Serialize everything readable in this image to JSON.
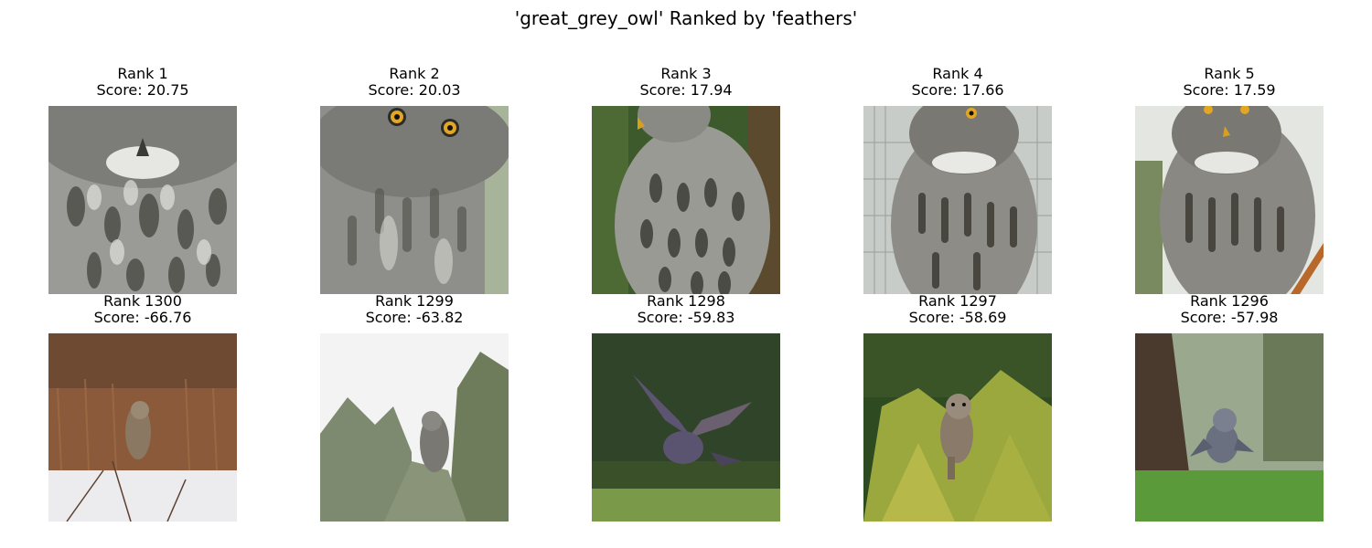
{
  "title": "'great_grey_owl' Ranked by 'feathers'",
  "top_row": [
    {
      "rank": "Rank 1",
      "score": "Score: 20.75"
    },
    {
      "rank": "Rank 2",
      "score": "Score: 20.03"
    },
    {
      "rank": "Rank 3",
      "score": "Score: 17.94"
    },
    {
      "rank": "Rank 4",
      "score": "Score: 17.66"
    },
    {
      "rank": "Rank 5",
      "score": "Score: 17.59"
    }
  ],
  "bottom_row": [
    {
      "rank": "Rank 1300",
      "score": "Score: -66.76"
    },
    {
      "rank": "Rank 1299",
      "score": "Score: -63.82"
    },
    {
      "rank": "Rank 1298",
      "score": "Score: -59.83"
    },
    {
      "rank": "Rank 1297",
      "score": "Score: -58.69"
    },
    {
      "rank": "Rank 1296",
      "score": "Score: -57.98"
    }
  ]
}
